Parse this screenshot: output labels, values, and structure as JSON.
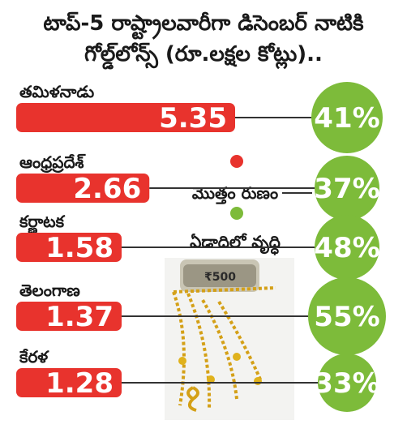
{
  "title": {
    "line1": "టాప్‌-5 రాష్ట్రాలవారీగా డిసెంబర్‌ నాటికి",
    "line2": "గోల్డ్‌లోన్స్‌ (రూ.లక్షల కోట్లు).."
  },
  "legend": {
    "total_debt": "మొత్తం రుణం",
    "annual_growth": "ఏడాదిలో వృద్ధి"
  },
  "colors": {
    "bar": "#e8332d",
    "growth_circle": "#7dbb3a",
    "leader": "#333333"
  },
  "chart_data": {
    "type": "bar",
    "orientation": "horizontal",
    "title": "టాప్‌-5 రాష్ట్రాలవారీగా డిసెంబర్‌ నాటికి గోల్డ్‌లోన్స్‌ (రూ.లక్షల కోట్లు)..",
    "categories": [
      "తమిళనాడు",
      "ఆంధ్రప్రదేశ్‌",
      "కర్ణాటక",
      "తెలంగాణ",
      "కేరళ"
    ],
    "series": [
      {
        "name": "మొత్తం రుణం",
        "values": [
          5.35,
          2.66,
          1.58,
          1.37,
          1.28
        ],
        "labels": [
          "5.35",
          "2.66",
          "1.58",
          "1.37",
          "1.28"
        ]
      },
      {
        "name": "ఏడాదిలో వృద్ధి",
        "values": [
          41,
          37,
          48,
          55,
          33
        ],
        "labels": [
          "41%",
          "37%",
          "48%",
          "55%",
          "33%"
        ]
      }
    ]
  }
}
